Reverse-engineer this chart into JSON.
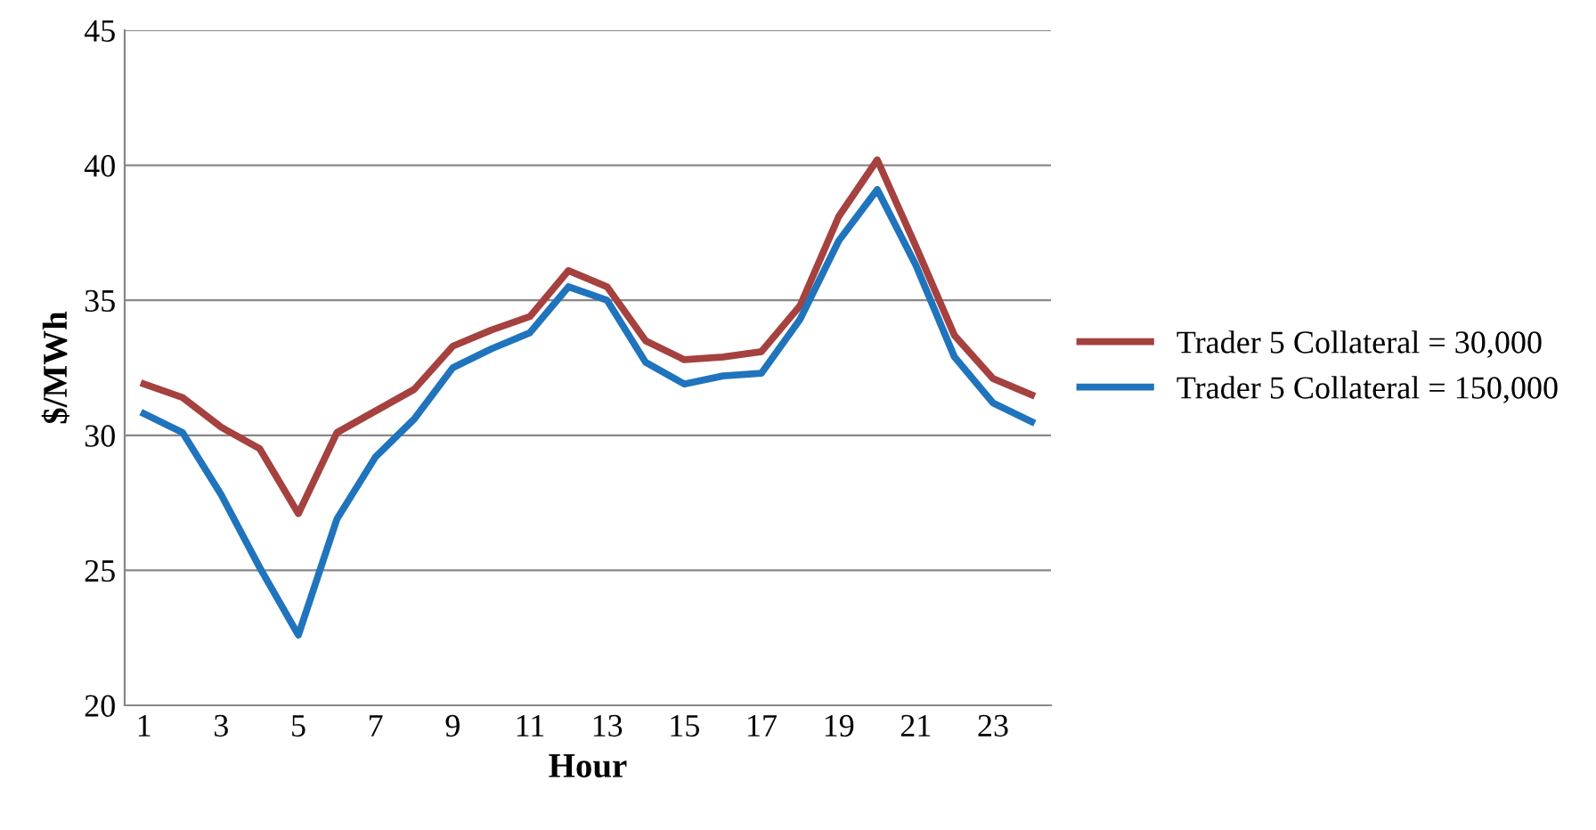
{
  "chart_data": {
    "type": "line",
    "xlabel": "Hour",
    "ylabel": "$/MWh",
    "categories": [
      "1",
      null,
      "3",
      null,
      "5",
      null,
      "7",
      null,
      "9",
      null,
      "11",
      null,
      "13",
      null,
      "15",
      null,
      "17",
      null,
      "19",
      null,
      "21",
      null,
      "23",
      null
    ],
    "series": [
      {
        "name": "Trader 5 Collateral = 30,000",
        "color": "#a5413f",
        "values": [
          31.9,
          31.4,
          30.3,
          29.5,
          27.1,
          30.1,
          30.9,
          31.7,
          33.3,
          33.9,
          34.4,
          36.1,
          35.5,
          33.5,
          32.8,
          32.9,
          33.1,
          34.8,
          38.1,
          40.2,
          37.0,
          33.7,
          32.1,
          31.5
        ]
      },
      {
        "name": "Trader 5 Collateral = 150,000",
        "color": "#1f74bd",
        "values": [
          30.8,
          30.1,
          27.8,
          25.1,
          22.6,
          26.9,
          29.2,
          30.6,
          32.5,
          33.2,
          33.8,
          35.5,
          35.0,
          32.7,
          31.9,
          32.2,
          32.3,
          34.3,
          37.2,
          39.1,
          36.3,
          32.9,
          31.2,
          30.5
        ]
      }
    ],
    "ylim": [
      20,
      45
    ],
    "yticks": [
      20,
      25,
      30,
      35,
      40,
      45
    ],
    "grid": "y",
    "legend": "right",
    "marker": "none",
    "line_style": "solid"
  }
}
